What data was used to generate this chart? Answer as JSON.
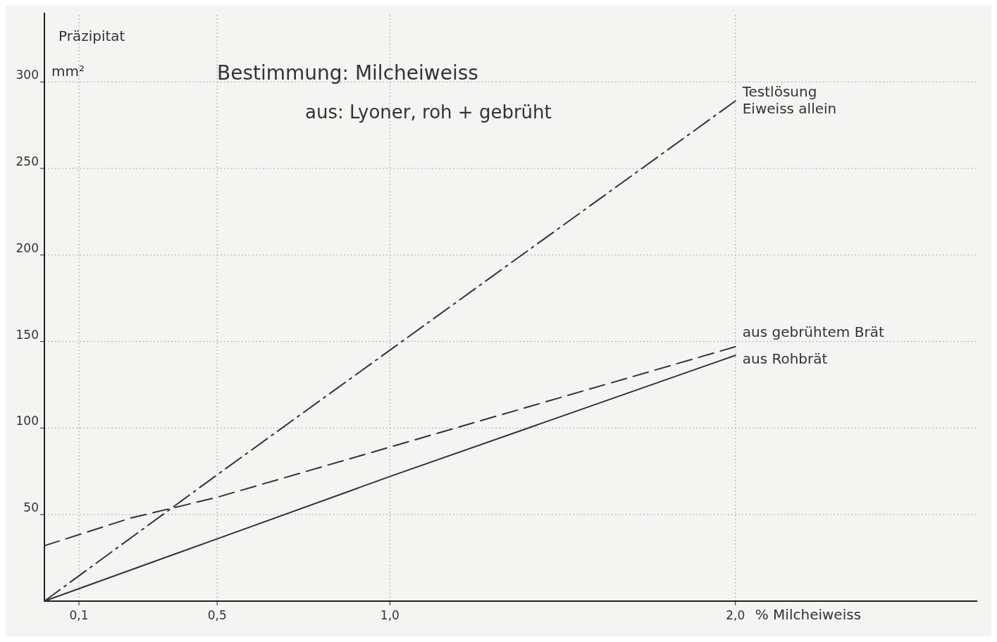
{
  "chart_data": {
    "type": "line",
    "title": "Bestimmung: Milcheiweiss",
    "subtitle": "aus: Lyoner, roh + gebrüht",
    "xlabel": "% Milcheiweiss",
    "ylabel": "Präzipitat mm²",
    "xlim": [
      0,
      2.7
    ],
    "ylim": [
      0,
      340
    ],
    "xticks": [
      {
        "value": 0.1,
        "label": "0,1"
      },
      {
        "value": 0.5,
        "label": "0,5"
      },
      {
        "value": 1.0,
        "label": "1,0"
      },
      {
        "value": 2.0,
        "label": "2,0"
      }
    ],
    "yticks": [
      50,
      100,
      150,
      200,
      250,
      300
    ],
    "grid": true,
    "series": [
      {
        "name": "Testlösung Eiweiss allein",
        "color": "#333333",
        "line_style": "dotted",
        "x": [
          0,
          0.5,
          1.0,
          2.0
        ],
        "values": [
          0,
          73,
          145,
          289
        ]
      },
      {
        "name": "aus gebrühtem Brät",
        "color": "#333333",
        "line_style": "dashed",
        "x": [
          0,
          0.25,
          0.5,
          1.0,
          1.5,
          2.0
        ],
        "values": [
          32,
          48,
          60,
          89,
          118,
          147
        ]
      },
      {
        "name": "aus Rohbrät",
        "color": "#333333",
        "line_style": "solid",
        "x": [
          0,
          0.5,
          1.0,
          2.0
        ],
        "values": [
          0,
          36,
          72,
          142
        ]
      }
    ]
  }
}
